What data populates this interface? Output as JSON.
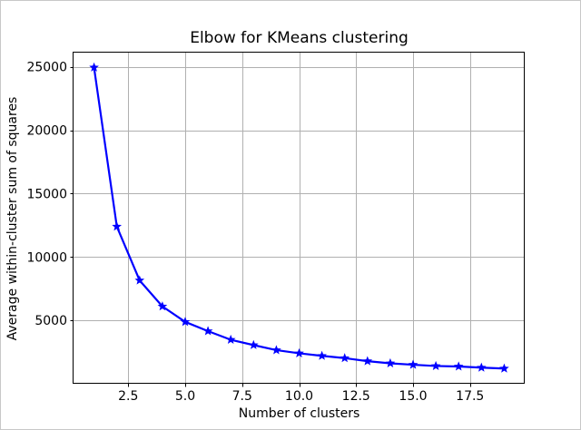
{
  "figure": {
    "border_color": "#c8c8c8",
    "background_color": "#ffffff"
  },
  "chart_data": {
    "type": "line",
    "title": "Elbow for KMeans clustering",
    "xlabel": "Number of clusters",
    "ylabel": "Average within-cluster sum of squares",
    "x": [
      1,
      2,
      3,
      4,
      5,
      6,
      7,
      8,
      9,
      10,
      11,
      12,
      13,
      14,
      15,
      16,
      17,
      18,
      19
    ],
    "y": [
      24950,
      12400,
      8150,
      6100,
      4880,
      4150,
      3470,
      3050,
      2650,
      2400,
      2200,
      2020,
      1780,
      1610,
      1500,
      1400,
      1360,
      1270,
      1200
    ],
    "xlim": [
      0.1,
      19.9
    ],
    "ylim": [
      0,
      26120
    ],
    "xticks": [
      2.5,
      5.0,
      7.5,
      10.0,
      12.5,
      15.0,
      17.5
    ],
    "xtick_labels": [
      "2.5",
      "5.0",
      "7.5",
      "10.0",
      "12.5",
      "15.0",
      "17.5"
    ],
    "yticks": [
      5000,
      10000,
      15000,
      20000,
      25000
    ],
    "ytick_labels": [
      "5000",
      "10000",
      "15000",
      "20000",
      "25000"
    ],
    "line_color": "#0000ff",
    "marker": "star",
    "marker_color": "#0000ff",
    "grid": true,
    "grid_color": "#b0b0b0",
    "axes_color": "#000000",
    "legend_position": "none"
  }
}
